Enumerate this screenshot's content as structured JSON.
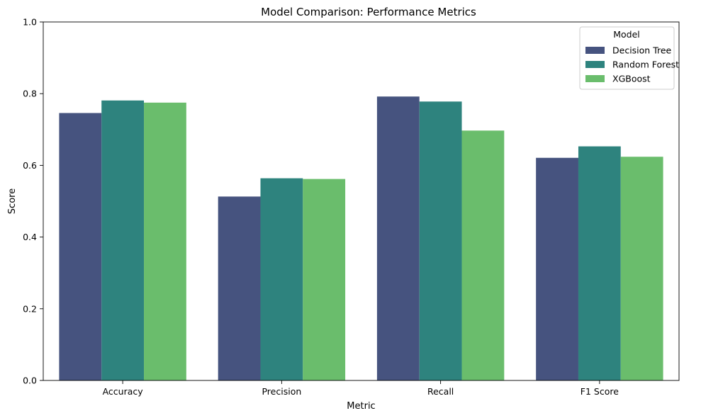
{
  "chart_data": {
    "type": "bar",
    "title": "Model Comparison: Performance Metrics",
    "xlabel": "Metric",
    "ylabel": "Score",
    "ylim": [
      0,
      1.0
    ],
    "yticks": [
      "0.0",
      "0.2",
      "0.4",
      "0.6",
      "0.8",
      "1.0"
    ],
    "categories": [
      "Accuracy",
      "Precision",
      "Recall",
      "F1 Score"
    ],
    "legend": {
      "title": "Model",
      "position": "top-right"
    },
    "grid": false,
    "series": [
      {
        "name": "Decision Tree",
        "color": "#46537f",
        "values": [
          0.746,
          0.513,
          0.792,
          0.621
        ]
      },
      {
        "name": "Random Forest",
        "color": "#2e837e",
        "values": [
          0.781,
          0.564,
          0.778,
          0.653
        ]
      },
      {
        "name": "XGBoost",
        "color": "#6abd6c",
        "values": [
          0.775,
          0.562,
          0.697,
          0.624
        ]
      }
    ]
  }
}
